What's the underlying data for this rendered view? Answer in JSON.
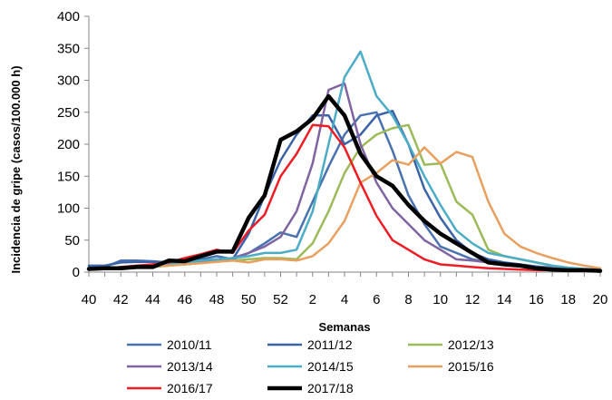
{
  "chart_data": {
    "type": "line",
    "title": "",
    "xlabel": "Semanas",
    "ylabel": "Incidencia de gripe (casos/100.000 h)",
    "ylim": [
      0,
      400
    ],
    "yticks": [
      "0",
      "50",
      "100",
      "150",
      "200",
      "250",
      "300",
      "350",
      "400"
    ],
    "xticks": [
      "40",
      "42",
      "44",
      "46",
      "48",
      "50",
      "52",
      "2",
      "4",
      "6",
      "8",
      "10",
      "12",
      "14",
      "16",
      "18",
      "20"
    ],
    "categories": [
      "40",
      "41",
      "42",
      "43",
      "44",
      "45",
      "46",
      "47",
      "48",
      "49",
      "50",
      "51",
      "52",
      "1",
      "2",
      "3",
      "4",
      "5",
      "6",
      "7",
      "8",
      "9",
      "10",
      "11",
      "12",
      "13",
      "14",
      "15",
      "16",
      "17",
      "18",
      "19",
      "20"
    ],
    "grid": false,
    "legend": "bottom",
    "series": [
      {
        "name": "2010/11",
        "color": "#4a72b0",
        "width": 2.5,
        "values": [
          8,
          8,
          18,
          18,
          17,
          15,
          18,
          20,
          25,
          20,
          30,
          45,
          62,
          55,
          110,
          165,
          215,
          245,
          250,
          190,
          120,
          75,
          40,
          30,
          20,
          15,
          12,
          10,
          8,
          6,
          5,
          4,
          3
        ]
      },
      {
        "name": "2011/12",
        "color": "#3b63a8",
        "width": 2.5,
        "values": [
          10,
          10,
          15,
          16,
          16,
          15,
          18,
          20,
          18,
          20,
          60,
          120,
          175,
          215,
          245,
          245,
          200,
          215,
          245,
          252,
          200,
          130,
          85,
          50,
          30,
          20,
          15,
          12,
          9,
          7,
          5,
          4,
          3
        ]
      },
      {
        "name": "2012/13",
        "color": "#9bbb59",
        "width": 2.5,
        "values": [
          5,
          5,
          6,
          7,
          8,
          10,
          12,
          14,
          17,
          18,
          20,
          22,
          22,
          20,
          45,
          95,
          155,
          195,
          215,
          225,
          230,
          168,
          170,
          110,
          90,
          35,
          25,
          20,
          15,
          10,
          7,
          5,
          4
        ]
      },
      {
        "name": "2013/14",
        "color": "#8064a2",
        "width": 2.5,
        "values": [
          5,
          5,
          7,
          8,
          10,
          13,
          15,
          17,
          20,
          22,
          30,
          40,
          55,
          95,
          170,
          285,
          295,
          200,
          140,
          100,
          75,
          50,
          35,
          20,
          18,
          15,
          12,
          10,
          8,
          6,
          5,
          4,
          3
        ]
      },
      {
        "name": "2014/15",
        "color": "#4bacc6",
        "width": 2.5,
        "values": [
          5,
          6,
          8,
          10,
          12,
          13,
          15,
          18,
          20,
          22,
          25,
          30,
          30,
          35,
          95,
          200,
          305,
          345,
          275,
          245,
          200,
          150,
          105,
          65,
          45,
          30,
          25,
          20,
          15,
          10,
          7,
          5,
          4
        ]
      },
      {
        "name": "2015/16",
        "color": "#e8a060",
        "width": 2.5,
        "values": [
          5,
          5,
          6,
          8,
          9,
          10,
          12,
          14,
          16,
          18,
          15,
          20,
          20,
          18,
          25,
          45,
          80,
          140,
          155,
          175,
          168,
          195,
          170,
          188,
          180,
          110,
          60,
          40,
          30,
          22,
          15,
          10,
          6
        ]
      },
      {
        "name": "2016/17",
        "color": "#ee1c24",
        "width": 2.5,
        "values": [
          4,
          5,
          8,
          10,
          12,
          15,
          22,
          28,
          35,
          30,
          65,
          90,
          150,
          185,
          230,
          228,
          195,
          140,
          88,
          50,
          35,
          20,
          12,
          10,
          8,
          6,
          5,
          4,
          3,
          3,
          2,
          2,
          2
        ]
      },
      {
        "name": "2017/18",
        "color": "#000000",
        "width": 4.5,
        "values": [
          5,
          6,
          6,
          8,
          8,
          18,
          17,
          25,
          32,
          32,
          85,
          120,
          207,
          220,
          240,
          275,
          245,
          185,
          150,
          135,
          105,
          80,
          60,
          45,
          30,
          15,
          12,
          10,
          6,
          4,
          3,
          3,
          2
        ]
      }
    ]
  }
}
